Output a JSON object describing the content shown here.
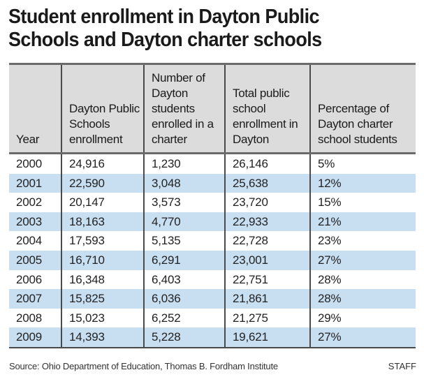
{
  "title": {
    "line1": "Student enrollment in Dayton Public",
    "line2": "Schools and Dayton charter schools"
  },
  "table": {
    "headers": [
      "Year",
      "Dayton Public Schools enrollment",
      "Number of Dayton students enrolled in a charter",
      "Total public school enrollment in Dayton",
      "Percentage of Dayton charter school students"
    ],
    "rows": [
      [
        "2000",
        "24,916",
        "1,230",
        "26,146",
        "5%"
      ],
      [
        "2001",
        "22,590",
        "3,048",
        "25,638",
        "12%"
      ],
      [
        "2002",
        "20,147",
        "3,573",
        "23,720",
        "15%"
      ],
      [
        "2003",
        "18,163",
        "4,770",
        "22,933",
        "21%"
      ],
      [
        "2004",
        "17,593",
        "5,135",
        "22,728",
        "23%"
      ],
      [
        "2005",
        "16,710",
        "6,291",
        "23,001",
        "27%"
      ],
      [
        "2006",
        "16,348",
        "6,403",
        "22,751",
        "28%"
      ],
      [
        "2007",
        "15,825",
        "6,036",
        "21,861",
        "28%"
      ],
      [
        "2008",
        "15,023",
        "6,252",
        "21,275",
        "29%"
      ],
      [
        "2009",
        "14,393",
        "5,228",
        "19,621",
        "27%"
      ]
    ]
  },
  "footer": {
    "source": "Source: Ohio Department of Education, Thomas B. Fordham Institute",
    "credit": "STAFF"
  },
  "colors": {
    "header_bg": "#dcdcdc",
    "stripe_bg": "#c8dff2",
    "rule": "#4a4a4a"
  }
}
